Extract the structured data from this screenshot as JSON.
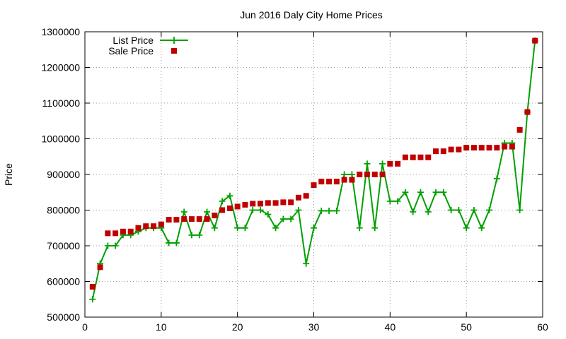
{
  "chart_data": {
    "type": "line",
    "title": "Jun 2016 Daly City Home Prices",
    "xlabel": "",
    "ylabel": "Price",
    "xlim": [
      0,
      60
    ],
    "ylim": [
      500000,
      1300000
    ],
    "x_ticks": [
      "0",
      "10",
      "20",
      "30",
      "40",
      "50",
      "60"
    ],
    "y_ticks": [
      "500000",
      "600000",
      "700000",
      "800000",
      "900000",
      "1000000",
      "1100000",
      "1200000",
      "1300000"
    ],
    "grid": true,
    "legend_position": "top-left",
    "colors": {
      "list": "#00a000",
      "sale": "#c00000"
    },
    "x": [
      1,
      2,
      3,
      4,
      5,
      6,
      7,
      8,
      9,
      10,
      11,
      12,
      13,
      14,
      15,
      16,
      17,
      18,
      19,
      20,
      21,
      22,
      23,
      24,
      25,
      26,
      27,
      28,
      29,
      30,
      31,
      32,
      33,
      34,
      35,
      36,
      37,
      38,
      39,
      40,
      41,
      42,
      43,
      44,
      45,
      46,
      47,
      48,
      49,
      50,
      51,
      52,
      53,
      54,
      55,
      56,
      57,
      58,
      59
    ],
    "series": [
      {
        "name": "List Price",
        "style": "linespoints",
        "values": [
          550000,
          650000,
          700000,
          700000,
          730000,
          730000,
          740000,
          750000,
          750000,
          750000,
          708000,
          708000,
          795000,
          730000,
          730000,
          795000,
          750000,
          825000,
          840000,
          750000,
          750000,
          800000,
          800000,
          788000,
          750000,
          775000,
          775000,
          800000,
          650000,
          750000,
          798000,
          798000,
          798000,
          900000,
          900000,
          750000,
          930000,
          750000,
          930000,
          825000,
          825000,
          850000,
          795000,
          850000,
          795000,
          850000,
          850000,
          800000,
          800000,
          750000,
          800000,
          750000,
          800000,
          888000,
          988000,
          988000,
          800000,
          1075000,
          1275000
        ]
      },
      {
        "name": "Sale Price",
        "style": "points",
        "values": [
          585000,
          640000,
          735000,
          735000,
          740000,
          740000,
          750000,
          755000,
          755000,
          760000,
          773000,
          773000,
          775000,
          775000,
          775000,
          775000,
          785000,
          800000,
          805000,
          810000,
          815000,
          818000,
          818000,
          820000,
          820000,
          822000,
          822000,
          835000,
          840000,
          870000,
          880000,
          880000,
          880000,
          885000,
          885000,
          900000,
          900000,
          900000,
          900000,
          930000,
          930000,
          948000,
          948000,
          948000,
          948000,
          965000,
          965000,
          970000,
          970000,
          975000,
          975000,
          975000,
          975000,
          975000,
          978000,
          978000,
          1025000,
          1075000,
          1275000
        ]
      }
    ]
  }
}
